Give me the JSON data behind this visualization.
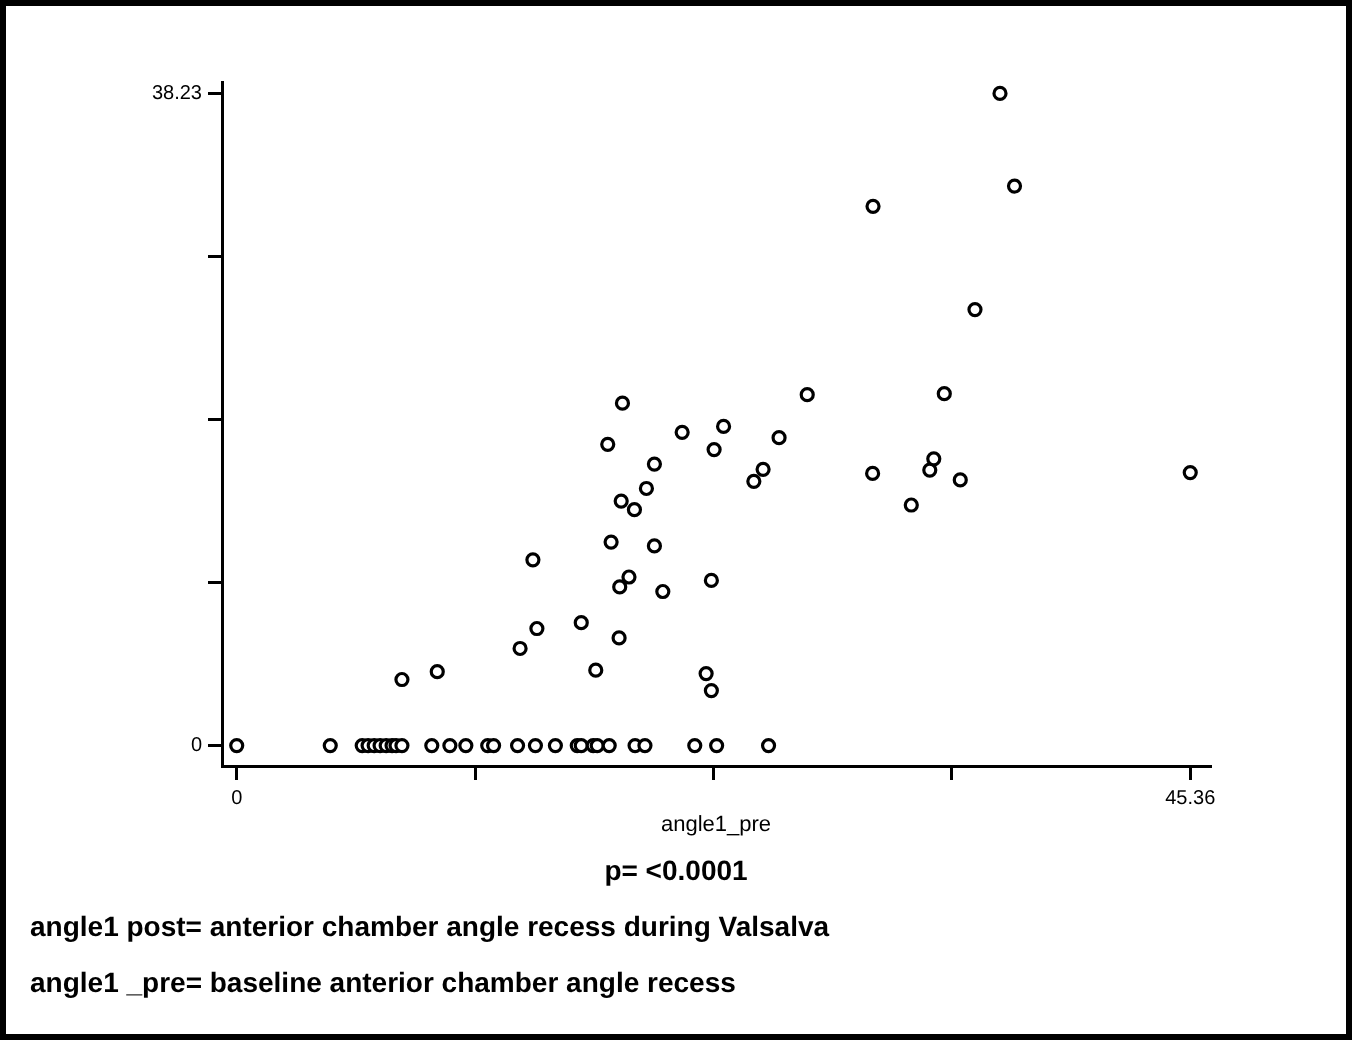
{
  "chart_data": {
    "type": "scatter",
    "xlabel": "angle1_pre",
    "marker": "circle",
    "color": "#000000",
    "xlim": [
      -0.7,
      46.3
    ],
    "ylim": [
      -1.2,
      38.9
    ],
    "xticks": [
      0,
      {
        "value": 11.34,
        "label": null
      },
      {
        "value": 22.68,
        "label": null
      },
      {
        "value": 34.02,
        "label": null
      },
      45.36
    ],
    "yticks": [
      0,
      {
        "value": 9.56,
        "label": null
      },
      {
        "value": 19.12,
        "label": null
      },
      {
        "value": 28.67,
        "label": null
      },
      38.23
    ],
    "x": [
      0,
      4.45,
      5.97,
      6.25,
      6.54,
      6.82,
      7.11,
      7.39,
      7.58,
      7.86,
      9.28,
      10.14,
      10.9,
      11.94,
      12.22,
      13.36,
      14.21,
      15.16,
      16.2,
      16.39,
      16.96,
      17.15,
      17.72,
      18.95,
      19.42,
      21.79,
      22.83,
      25.3,
      7.86,
      9.54,
      13.48,
      14.28,
      14.09,
      16.39,
      17.08,
      18.19,
      18.22,
      18.66,
      17.81,
      19.87,
      20.27,
      18.29,
      18.92,
      19.49,
      19.87,
      17.65,
      18.35,
      21.19,
      22.71,
      23.16,
      25.8,
      24.6,
      25.04,
      27.14,
      30.27,
      30.25,
      32.09,
      32.97,
      33.16,
      34.42,
      33.66,
      35.12,
      36.31,
      37.0,
      45.36,
      22.58,
      22.33,
      22.58
    ],
    "values": [
      0,
      0,
      0,
      0,
      0,
      0,
      0,
      0,
      0,
      0,
      0,
      0,
      0,
      0,
      0,
      0,
      0,
      0,
      0,
      0,
      0,
      0,
      0,
      0,
      0,
      0,
      0,
      0,
      3.87,
      4.33,
      5.69,
      6.86,
      10.89,
      7.2,
      4.42,
      6.31,
      9.3,
      9.88,
      11.93,
      11.7,
      9.03,
      14.33,
      13.83,
      15.07,
      16.5,
      17.66,
      20.07,
      18.36,
      17.35,
      18.71,
      18.05,
      15.49,
      16.19,
      20.57,
      31.61,
      15.95,
      14.1,
      16.15,
      16.81,
      15.57,
      20.63,
      25.56,
      38.23,
      32.8,
      16.0,
      9.68,
      4.22,
      3.22
    ],
    "annotations": [
      "p= <0.0001",
      "angle1 post= anterior chamber angle recess during Valsalva",
      "angle1 _pre= baseline anterior chamber angle recess"
    ]
  }
}
